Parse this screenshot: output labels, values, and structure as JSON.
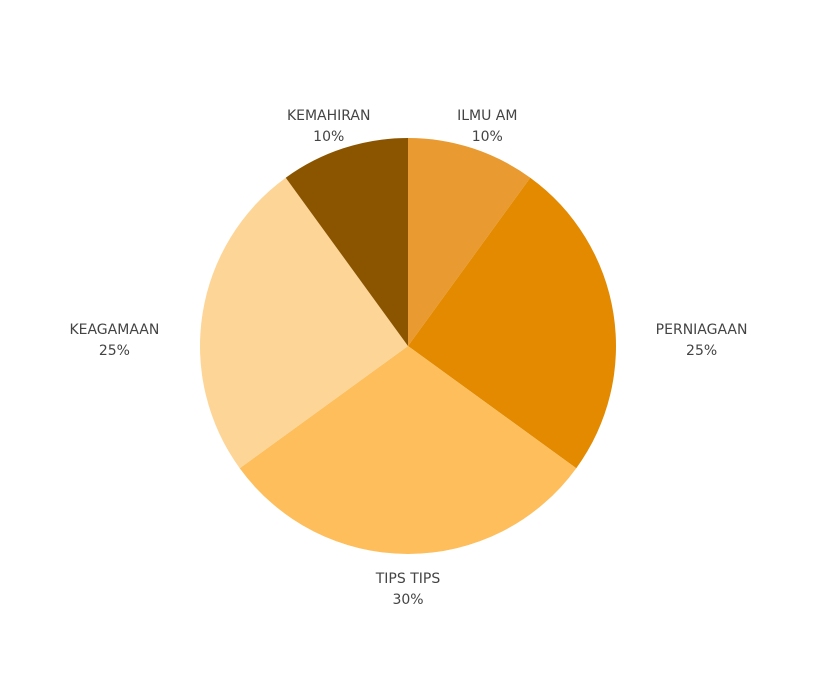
{
  "chart_data": {
    "type": "pie",
    "categories": [
      "ILMU AM",
      "PERNIAGAAN",
      "TIPS TIPS",
      "KEAGAMAAN",
      "KEMAHIRAN"
    ],
    "values": [
      10,
      25,
      30,
      25,
      10
    ],
    "value_labels": [
      "10%",
      "25%",
      "30%",
      "25%",
      "10%"
    ],
    "colors": [
      "#e99a30",
      "#e38a00",
      "#fdbe5b",
      "#fdd597",
      "#8b5500"
    ]
  }
}
